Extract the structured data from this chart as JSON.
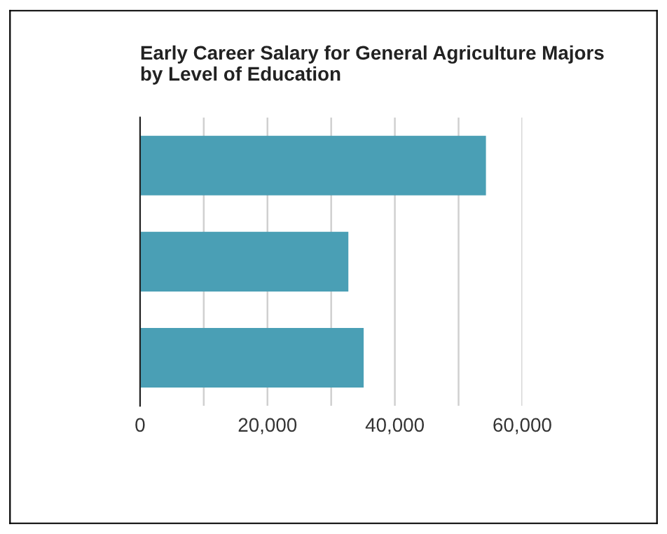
{
  "chart_data": {
    "type": "bar",
    "orientation": "horizontal",
    "title": "Early Career Salary for General Agriculture Majors\nby Level of Education",
    "categories": [
      null,
      null,
      null
    ],
    "values": [
      54300,
      32700,
      35100
    ],
    "color": "#4a9fb5",
    "xlim": [
      0,
      60000
    ],
    "xticks": [
      0,
      {
        "value": 10000,
        "label": null
      },
      {
        "value": 20000,
        "label": "20,000"
      },
      {
        "value": 30000,
        "label": null
      },
      {
        "value": 40000,
        "label": "40,000"
      },
      {
        "value": 50000,
        "label": null
      },
      {
        "value": 60000,
        "label": "60,000"
      }
    ],
    "grid": "x",
    "tick_labels": "x"
  }
}
